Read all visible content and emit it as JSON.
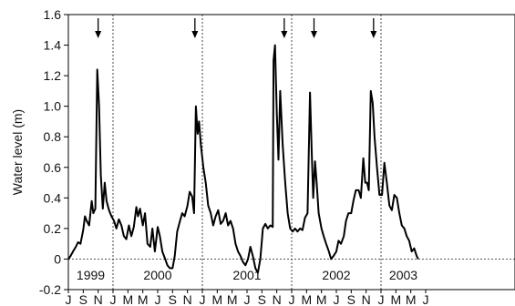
{
  "chart_data": {
    "type": "line",
    "ylabel": "Water level (m)",
    "xlabel": "",
    "ylim": [
      -0.2,
      1.6
    ],
    "yticks": [
      -0.2,
      0,
      0.2,
      0.4,
      0.6,
      0.8,
      1.0,
      1.2,
      1.4,
      1.6
    ],
    "ytick_labels": [
      "-0.2",
      "0",
      "0.2",
      "0.4",
      "0.6",
      "0.8",
      "1.0",
      "1.2",
      "1.4",
      "1.6"
    ],
    "x_range_months": [
      "1999-07",
      "2004-07"
    ],
    "month_ticks": [
      {
        "date": "1999-07",
        "label": "J"
      },
      {
        "date": "1999-09",
        "label": "S"
      },
      {
        "date": "1999-11",
        "label": "N"
      },
      {
        "date": "2000-01",
        "label": "J"
      },
      {
        "date": "2000-03",
        "label": "M"
      },
      {
        "date": "2000-05",
        "label": "M"
      },
      {
        "date": "2000-07",
        "label": "J"
      },
      {
        "date": "2000-09",
        "label": "S"
      },
      {
        "date": "2000-11",
        "label": "N"
      },
      {
        "date": "2001-01",
        "label": "J"
      },
      {
        "date": "2001-03",
        "label": "M"
      },
      {
        "date": "2001-05",
        "label": "M"
      },
      {
        "date": "2001-07",
        "label": "J"
      },
      {
        "date": "2001-09",
        "label": "S"
      },
      {
        "date": "2001-11",
        "label": "N"
      },
      {
        "date": "2002-01",
        "label": "J"
      },
      {
        "date": "2002-03",
        "label": "M"
      },
      {
        "date": "2002-05",
        "label": "M"
      },
      {
        "date": "2002-07",
        "label": "J"
      },
      {
        "date": "2002-09",
        "label": "S"
      },
      {
        "date": "2002-11",
        "label": "N"
      },
      {
        "date": "2003-01",
        "label": "J"
      },
      {
        "date": "2003-03",
        "label": "M"
      },
      {
        "date": "2003-05",
        "label": "M"
      },
      {
        "date": "2003-07",
        "label": "J"
      }
    ],
    "year_labels": [
      {
        "label": "1999",
        "date": "1999-10"
      },
      {
        "label": "2000",
        "date": "2000-07"
      },
      {
        "label": "2001",
        "date": "2001-07"
      },
      {
        "label": "2002",
        "date": "2002-07"
      },
      {
        "label": "2003",
        "date": "2003-04"
      }
    ],
    "year_dividers": [
      "2000-01",
      "2001-01",
      "2002-01",
      "2003-01"
    ],
    "arrows": [
      "1999-11",
      "2000-12",
      "2001-12",
      "2002-04",
      "2002-12"
    ],
    "zero_line": 0,
    "series": [
      {
        "color": "#000000",
        "points": [
          [
            "1999-07-01",
            0.0
          ],
          [
            "1999-07-10",
            0.02
          ],
          [
            "1999-07-20",
            0.05
          ],
          [
            "1999-08-01",
            0.08
          ],
          [
            "1999-08-10",
            0.11
          ],
          [
            "1999-08-20",
            0.1
          ],
          [
            "1999-09-01",
            0.19
          ],
          [
            "1999-09-08",
            0.28
          ],
          [
            "1999-09-15",
            0.25
          ],
          [
            "1999-09-25",
            0.22
          ],
          [
            "1999-10-05",
            0.38
          ],
          [
            "1999-10-12",
            0.3
          ],
          [
            "1999-10-20",
            0.33
          ],
          [
            "1999-10-28",
            1.24
          ],
          [
            "1999-11-05",
            1.0
          ],
          [
            "1999-11-12",
            0.55
          ],
          [
            "1999-11-20",
            0.33
          ],
          [
            "1999-11-28",
            0.5
          ],
          [
            "1999-12-05",
            0.38
          ],
          [
            "1999-12-15",
            0.32
          ],
          [
            "1999-12-25",
            0.28
          ],
          [
            "2000-01-05",
            0.25
          ],
          [
            "2000-01-15",
            0.2
          ],
          [
            "2000-01-25",
            0.26
          ],
          [
            "2000-02-05",
            0.22
          ],
          [
            "2000-02-15",
            0.15
          ],
          [
            "2000-02-25",
            0.13
          ],
          [
            "2000-03-05",
            0.22
          ],
          [
            "2000-03-15",
            0.15
          ],
          [
            "2000-03-25",
            0.21
          ],
          [
            "2000-04-05",
            0.34
          ],
          [
            "2000-04-12",
            0.28
          ],
          [
            "2000-04-20",
            0.33
          ],
          [
            "2000-05-01",
            0.22
          ],
          [
            "2000-05-10",
            0.3
          ],
          [
            "2000-05-20",
            0.1
          ],
          [
            "2000-06-01",
            0.08
          ],
          [
            "2000-06-10",
            0.2
          ],
          [
            "2000-06-20",
            0.05
          ],
          [
            "2000-07-01",
            0.21
          ],
          [
            "2000-07-10",
            0.15
          ],
          [
            "2000-07-20",
            0.05
          ],
          [
            "2000-08-01",
            0.0
          ],
          [
            "2000-08-10",
            -0.04
          ],
          [
            "2000-08-20",
            -0.06
          ],
          [
            "2000-09-01",
            -0.06
          ],
          [
            "2000-09-10",
            0.02
          ],
          [
            "2000-09-20",
            0.18
          ],
          [
            "2000-10-01",
            0.25
          ],
          [
            "2000-10-10",
            0.3
          ],
          [
            "2000-10-20",
            0.28
          ],
          [
            "2000-11-01",
            0.35
          ],
          [
            "2000-11-10",
            0.44
          ],
          [
            "2000-11-20",
            0.41
          ],
          [
            "2000-11-28",
            0.3
          ],
          [
            "2000-12-05",
            1.0
          ],
          [
            "2000-12-12",
            0.82
          ],
          [
            "2000-12-18",
            0.9
          ],
          [
            "2000-12-25",
            0.75
          ],
          [
            "2001-01-05",
            0.6
          ],
          [
            "2001-01-15",
            0.5
          ],
          [
            "2001-01-25",
            0.35
          ],
          [
            "2001-02-05",
            0.3
          ],
          [
            "2001-02-15",
            0.22
          ],
          [
            "2001-02-25",
            0.28
          ],
          [
            "2001-03-05",
            0.32
          ],
          [
            "2001-03-15",
            0.23
          ],
          [
            "2001-03-25",
            0.25
          ],
          [
            "2001-04-05",
            0.3
          ],
          [
            "2001-04-15",
            0.22
          ],
          [
            "2001-04-25",
            0.25
          ],
          [
            "2001-05-05",
            0.2
          ],
          [
            "2001-05-15",
            0.1
          ],
          [
            "2001-05-25",
            0.05
          ],
          [
            "2001-06-05",
            0.02
          ],
          [
            "2001-06-15",
            -0.02
          ],
          [
            "2001-06-25",
            -0.04
          ],
          [
            "2001-07-05",
            0.0
          ],
          [
            "2001-07-15",
            0.08
          ],
          [
            "2001-07-25",
            0.02
          ],
          [
            "2001-08-05",
            -0.06
          ],
          [
            "2001-08-15",
            -0.09
          ],
          [
            "2001-08-25",
            0.0
          ],
          [
            "2001-09-05",
            0.2
          ],
          [
            "2001-09-15",
            0.23
          ],
          [
            "2001-09-25",
            0.2
          ],
          [
            "2001-10-05",
            0.22
          ],
          [
            "2001-10-15",
            0.21
          ],
          [
            "2001-10-18",
            1.3
          ],
          [
            "2001-10-24",
            1.4
          ],
          [
            "2001-11-01",
            0.95
          ],
          [
            "2001-11-08",
            0.65
          ],
          [
            "2001-11-15",
            1.1
          ],
          [
            "2001-11-25",
            0.75
          ],
          [
            "2001-12-05",
            0.5
          ],
          [
            "2001-12-15",
            0.3
          ],
          [
            "2001-12-25",
            0.2
          ],
          [
            "2002-01-05",
            0.18
          ],
          [
            "2002-01-15",
            0.2
          ],
          [
            "2002-01-25",
            0.18
          ],
          [
            "2002-02-05",
            0.2
          ],
          [
            "2002-02-15",
            0.19
          ],
          [
            "2002-02-25",
            0.27
          ],
          [
            "2002-03-05",
            0.3
          ],
          [
            "2002-03-15",
            1.09
          ],
          [
            "2002-03-22",
            0.7
          ],
          [
            "2002-03-28",
            0.4
          ],
          [
            "2002-04-05",
            0.64
          ],
          [
            "2002-04-12",
            0.5
          ],
          [
            "2002-04-20",
            0.3
          ],
          [
            "2002-05-01",
            0.2
          ],
          [
            "2002-05-10",
            0.15
          ],
          [
            "2002-05-20",
            0.1
          ],
          [
            "2002-06-01",
            0.05
          ],
          [
            "2002-06-10",
            0.0
          ],
          [
            "2002-06-20",
            0.02
          ],
          [
            "2002-07-01",
            0.05
          ],
          [
            "2002-07-10",
            0.12
          ],
          [
            "2002-07-20",
            0.1
          ],
          [
            "2002-08-01",
            0.15
          ],
          [
            "2002-08-10",
            0.25
          ],
          [
            "2002-08-20",
            0.3
          ],
          [
            "2002-09-01",
            0.3
          ],
          [
            "2002-09-10",
            0.38
          ],
          [
            "2002-09-20",
            0.45
          ],
          [
            "2002-10-01",
            0.45
          ],
          [
            "2002-10-10",
            0.4
          ],
          [
            "2002-10-20",
            0.66
          ],
          [
            "2002-10-28",
            0.5
          ],
          [
            "2002-11-05",
            0.5
          ],
          [
            "2002-11-12",
            0.45
          ],
          [
            "2002-11-20",
            1.1
          ],
          [
            "2002-11-28",
            1.02
          ],
          [
            "2002-12-05",
            0.8
          ],
          [
            "2002-12-15",
            0.6
          ],
          [
            "2002-12-25",
            0.42
          ],
          [
            "2003-01-05",
            0.42
          ],
          [
            "2003-01-15",
            0.63
          ],
          [
            "2003-01-25",
            0.5
          ],
          [
            "2003-02-05",
            0.35
          ],
          [
            "2003-02-15",
            0.32
          ],
          [
            "2003-02-25",
            0.42
          ],
          [
            "2003-03-05",
            0.4
          ],
          [
            "2003-03-15",
            0.3
          ],
          [
            "2003-03-25",
            0.22
          ],
          [
            "2003-04-05",
            0.2
          ],
          [
            "2003-04-15",
            0.15
          ],
          [
            "2003-04-25",
            0.12
          ],
          [
            "2003-05-05",
            0.05
          ],
          [
            "2003-05-15",
            0.07
          ],
          [
            "2003-05-25",
            0.02
          ],
          [
            "2003-06-01",
            0.0
          ]
        ]
      }
    ]
  }
}
